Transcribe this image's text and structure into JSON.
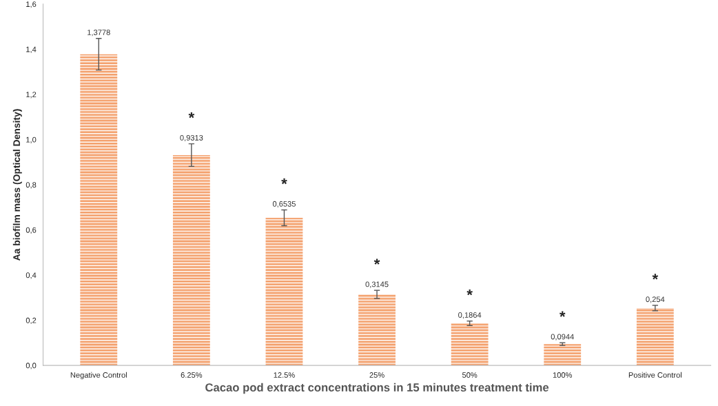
{
  "chart_data": {
    "type": "bar",
    "xlabel": "Cacao pod extract concentrations in 15 minutes treatment time",
    "ylabel": "Aa biofilm mass (Optical Density)",
    "categories": [
      "Negative Control",
      "6.25%",
      "12.5%",
      "25%",
      "50%",
      "100%",
      "Positive Control"
    ],
    "values": [
      1.3778,
      0.9313,
      0.6535,
      0.3145,
      0.1864,
      0.0944,
      0.254
    ],
    "value_labels": [
      "1,3778",
      "0,9313",
      "0,6535",
      "0,3145",
      "0,1864",
      "0,0944",
      "0,254"
    ],
    "errors": [
      0.07,
      0.05,
      0.035,
      0.018,
      0.01,
      0.006,
      0.012
    ],
    "color": "#f4a06c",
    "ylim": [
      0,
      1.6
    ],
    "yticks": [
      {
        "value": 0,
        "label": "0,0"
      },
      {
        "value": 0.2,
        "label": "0,2"
      },
      {
        "value": 0.4,
        "label": "0,4"
      },
      {
        "value": 0.6,
        "label": "0,6"
      },
      {
        "value": 0.8,
        "label": "0,8"
      },
      {
        "value": 1.0,
        "label": "1,0"
      },
      {
        "value": 1.2,
        "label": "1,2"
      },
      {
        "value": 1.4,
        "label": "1,4"
      },
      {
        "value": 1.6,
        "label": "1,6"
      }
    ],
    "annotations": [
      "*",
      "*",
      "*",
      "*",
      "*",
      "*"
    ],
    "grid": false
  }
}
